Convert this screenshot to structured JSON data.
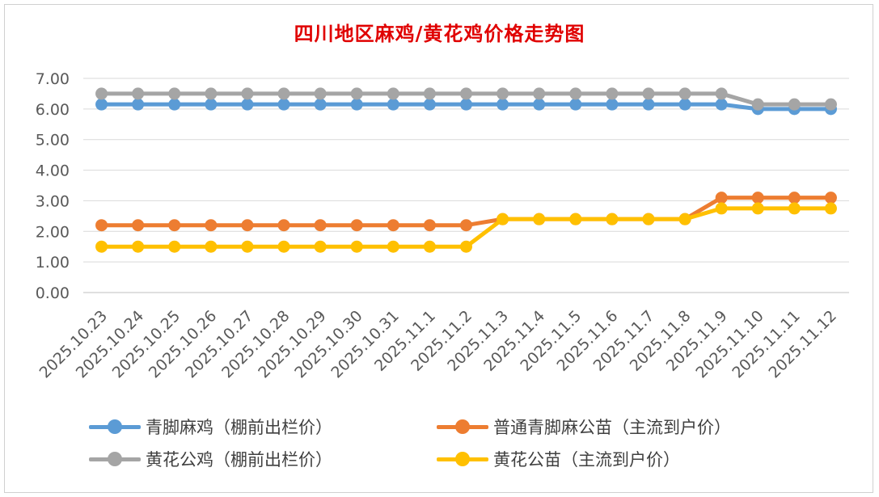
{
  "chart_data": {
    "type": "line",
    "title": "四川地区麻鸡/黄花鸡价格走势图",
    "xlabel": "",
    "ylabel": "",
    "ylim": [
      0,
      7
    ],
    "yticks": [
      "0.00",
      "1.00",
      "2.00",
      "3.00",
      "4.00",
      "5.00",
      "6.00",
      "7.00"
    ],
    "grid": true,
    "legend_position": "bottom",
    "categories": [
      "2025.10.23",
      "2025.10.24",
      "2025.10.25",
      "2025.10.26",
      "2025.10.27",
      "2025.10.28",
      "2025.10.29",
      "2025.10.30",
      "2025.10.31",
      "2025.11.1",
      "2025.11.2",
      "2025.11.3",
      "2025.11.4",
      "2025.11.5",
      "2025.11.6",
      "2025.11.7",
      "2025.11.8",
      "2025.11.9",
      "2025.11.10",
      "2025.11.11",
      "2025.11.12"
    ],
    "series": [
      {
        "name": "青脚麻鸡（棚前出栏价）",
        "color": "#5b9bd5",
        "values": [
          6.15,
          6.15,
          6.15,
          6.15,
          6.15,
          6.15,
          6.15,
          6.15,
          6.15,
          6.15,
          6.15,
          6.15,
          6.15,
          6.15,
          6.15,
          6.15,
          6.15,
          6.15,
          6.0,
          6.0,
          6.0
        ]
      },
      {
        "name": "普通青脚麻公苗（主流到户价）",
        "color": "#ed7d31",
        "values": [
          2.2,
          2.2,
          2.2,
          2.2,
          2.2,
          2.2,
          2.2,
          2.2,
          2.2,
          2.2,
          2.2,
          2.4,
          2.4,
          2.4,
          2.4,
          2.4,
          2.4,
          3.1,
          3.1,
          3.1,
          3.1
        ]
      },
      {
        "name": "黄花公鸡（棚前出栏价）",
        "color": "#a5a5a5",
        "values": [
          6.5,
          6.5,
          6.5,
          6.5,
          6.5,
          6.5,
          6.5,
          6.5,
          6.5,
          6.5,
          6.5,
          6.5,
          6.5,
          6.5,
          6.5,
          6.5,
          6.5,
          6.5,
          6.15,
          6.15,
          6.15
        ]
      },
      {
        "name": "黄花公苗（主流到户价）",
        "color": "#ffc000",
        "values": [
          1.5,
          1.5,
          1.5,
          1.5,
          1.5,
          1.5,
          1.5,
          1.5,
          1.5,
          1.5,
          1.5,
          2.4,
          2.4,
          2.4,
          2.4,
          2.4,
          2.4,
          2.75,
          2.75,
          2.75,
          2.75
        ]
      }
    ]
  }
}
